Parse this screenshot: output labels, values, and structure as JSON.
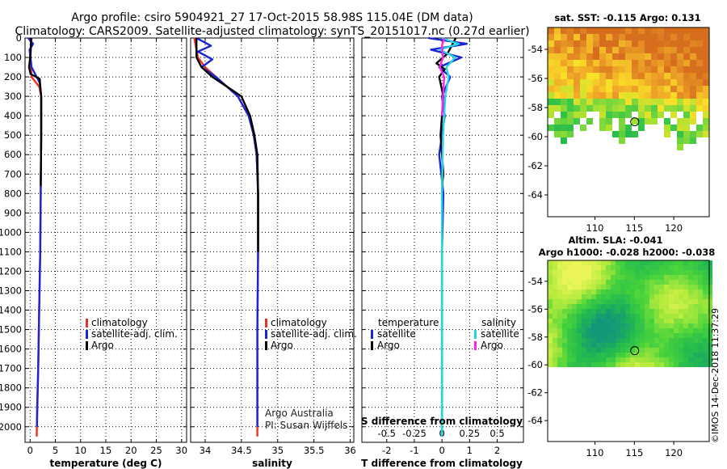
{
  "title": {
    "line1": "Argo profile: csiro 5904921_27 17-Oct-2015 58.98S 115.04E (DM data)",
    "line2": "Climatology: CARS2009. Satellite-adjusted climatology: synTS_20151017.nc (0.27d earlier)"
  },
  "colors": {
    "climatology": "#e8341c",
    "satellite": "#1a24d8",
    "argo": "#000000",
    "satellite_salinity": "#22d6e6",
    "argo_salinity": "#ff22ee"
  },
  "chart_data": [
    {
      "type": "line",
      "panel": "temperature",
      "xlabel": "temperature (deg C)",
      "ylabel": "",
      "xlim": [
        -1,
        31
      ],
      "ylim": [
        2080,
        0
      ],
      "xticks": [
        0,
        5,
        10,
        15,
        20,
        25,
        30
      ],
      "xtick_labels": [
        "0",
        "5",
        "10",
        "15",
        "20",
        "25",
        "30"
      ],
      "yticks": [
        0,
        100,
        200,
        300,
        400,
        500,
        600,
        700,
        800,
        900,
        1000,
        1100,
        1200,
        1300,
        1400,
        1500,
        1600,
        1700,
        1800,
        1900,
        2000
      ],
      "ytick_labels": [
        "0",
        "100",
        "200",
        "300",
        "400",
        "500",
        "600",
        "700",
        "800",
        "900",
        "1000",
        "1100",
        "1200",
        "1300",
        "1400",
        "1500",
        "1600",
        "1700",
        "1800",
        "1900",
        "2000"
      ],
      "series": [
        {
          "name": "climatology",
          "x": [
            0.3,
            0.0,
            0.3,
            1.8,
            2.2,
            2.2,
            2.1,
            2.0,
            1.8,
            1.6,
            1.45,
            1.35,
            1.3
          ],
          "y": [
            0,
            100,
            200,
            250,
            300,
            500,
            800,
            1100,
            1400,
            1700,
            1900,
            2000,
            2050
          ]
        },
        {
          "name": "satellite-adj. clim.",
          "x": [
            -0.4,
            0.6,
            -0.1,
            0.3,
            1.9,
            2.2,
            2.2,
            2.1,
            2.0,
            1.8,
            1.6,
            1.4,
            1.35
          ],
          "y": [
            0,
            30,
            60,
            150,
            230,
            300,
            500,
            800,
            1100,
            1400,
            1700,
            1900,
            2000
          ]
        },
        {
          "name": "Argo",
          "x": [
            0.2,
            0.1,
            -0.2,
            0.1,
            1.9,
            2.2,
            2.2,
            2.1
          ],
          "y": [
            0,
            80,
            150,
            185,
            210,
            300,
            500,
            760
          ]
        }
      ],
      "legend": [
        "climatology",
        "satellite-adj. clim.",
        "Argo"
      ]
    },
    {
      "type": "line",
      "panel": "salinity",
      "xlabel": "salinity",
      "ylabel": "",
      "xlim": [
        33.8,
        36.05
      ],
      "ylim": [
        2080,
        0
      ],
      "xticks": [
        34,
        34.5,
        35,
        35.5,
        36
      ],
      "xtick_labels": [
        "34",
        "34.5",
        "35",
        "35.5",
        "36"
      ],
      "series": [
        {
          "name": "climatology",
          "x": [
            33.85,
            33.9,
            34.0,
            34.15,
            34.3,
            34.45,
            34.6,
            34.67,
            34.71,
            34.73,
            34.73,
            34.72,
            34.72,
            34.72
          ],
          "y": [
            0,
            100,
            150,
            200,
            250,
            300,
            400,
            500,
            600,
            800,
            1100,
            1500,
            1900,
            2050
          ]
        },
        {
          "name": "satellite-adj. clim.",
          "x": [
            33.88,
            34.08,
            33.9,
            34.1,
            33.95,
            34.15,
            34.3,
            34.45,
            34.6,
            34.67,
            34.71,
            34.73,
            34.73,
            34.72,
            34.72
          ],
          "y": [
            0,
            40,
            70,
            110,
            150,
            200,
            250,
            300,
            400,
            500,
            600,
            800,
            1100,
            1500,
            2000
          ]
        },
        {
          "name": "Argo",
          "x": [
            33.88,
            33.88,
            33.95,
            34.1,
            34.3,
            34.5,
            34.62,
            34.68,
            34.72,
            34.73,
            34.73
          ],
          "y": [
            0,
            100,
            150,
            200,
            250,
            300,
            400,
            500,
            600,
            800,
            1100
          ]
        }
      ],
      "legend": [
        "climatology",
        "satellite-adj. clim.",
        "Argo"
      ],
      "annotations": [
        "Argo Australia",
        "PI: Susan Wijffels"
      ]
    },
    {
      "type": "line",
      "panel": "difference",
      "xlabel": "T difference from climatology",
      "top_axis_label": "S difference from climatology",
      "xlim": [
        -2.9,
        2.95
      ],
      "ylim": [
        2080,
        0
      ],
      "xticks": [
        -2,
        -1,
        0,
        1,
        2
      ],
      "xtick_labels": [
        "-2",
        "-1",
        "0",
        "1",
        "2"
      ],
      "top_ticks": [
        -0.5,
        -0.25,
        0,
        0.25,
        0.5
      ],
      "top_tick_labels": [
        "-0.5",
        "-0.25",
        "0",
        "0.25",
        "0.5"
      ],
      "s_scale": 4,
      "legend_titles": [
        "temperature",
        "salinity"
      ],
      "legend": [
        "satellite",
        "Argo",
        "satellite",
        "Argo"
      ],
      "series": [
        {
          "name": "temperature satellite",
          "quantity": "T",
          "x": [
            -0.5,
            0.9,
            -0.4,
            0.7,
            -0.1,
            0.3,
            0.0,
            0.1,
            -0.1,
            0.05,
            0.0,
            0.0,
            0.0,
            0.0
          ],
          "y": [
            0,
            30,
            60,
            100,
            150,
            200,
            300,
            400,
            600,
            800,
            1100,
            1400,
            1700,
            2050
          ]
        },
        {
          "name": "temperature Argo",
          "quantity": "T",
          "x": [
            0.5,
            0.2,
            -0.2,
            0.1,
            -0.1,
            0.05,
            -0.05,
            0.05,
            0.0
          ],
          "y": [
            0,
            80,
            130,
            160,
            200,
            300,
            500,
            700,
            760
          ]
        },
        {
          "name": "salinity satellite",
          "quantity": "S",
          "x": [
            0.0,
            0.15,
            -0.02,
            0.12,
            0.04,
            0.06,
            0.03,
            0.01,
            0.0,
            0.0,
            0.0,
            0.0
          ],
          "y": [
            0,
            30,
            60,
            100,
            150,
            200,
            300,
            500,
            800,
            1200,
            1600,
            2050
          ]
        },
        {
          "name": "salinity Argo",
          "quantity": "S",
          "x": [
            0.02,
            0.0,
            0.01,
            -0.02,
            0.02,
            0.01,
            0.0
          ],
          "y": [
            0,
            40,
            100,
            150,
            200,
            300,
            400
          ]
        }
      ]
    }
  ],
  "maps": {
    "sst": {
      "title": "sat. SST: -0.115 Argo: 0.131",
      "yticks": [
        "-54",
        "-56",
        "-58",
        "-60",
        "-62",
        "-64"
      ],
      "xticks": [
        "110",
        "115",
        "120"
      ]
    },
    "sla": {
      "title1": "Altim. SLA: -0.041",
      "title2": "Argo h1000: -0.028 h2000: -0.038",
      "yticks": [
        "-54",
        "-56",
        "-58",
        "-60",
        "-62",
        "-64"
      ],
      "xticks": [
        "110",
        "115",
        "120"
      ]
    },
    "float_position": {
      "lon": 115.04,
      "lat": -58.98
    }
  },
  "footer": "©IMOS 14-Dec-2018 11:37:29"
}
